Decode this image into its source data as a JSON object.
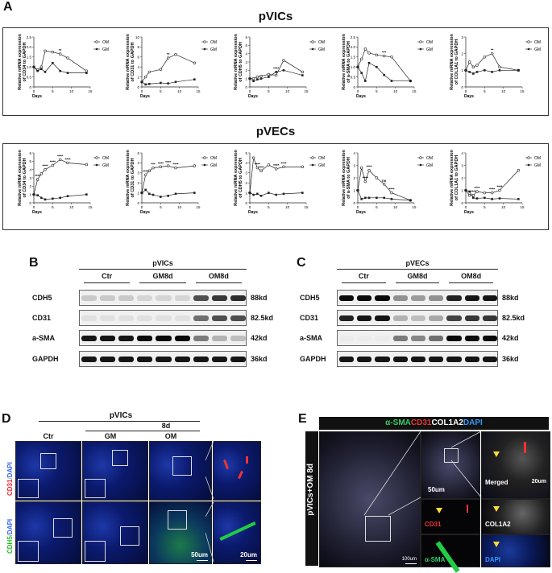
{
  "panels": {
    "A": "A",
    "B": "B",
    "C": "C",
    "D": "D",
    "E": "E"
  },
  "sectionA": {
    "title_top": "pVICs",
    "title_bottom": "pVECs",
    "xlabel": "Days",
    "legend": [
      "OM",
      "GM"
    ],
    "top_ylabels": [
      [
        "Relative mRNA expression",
        "of CD34 to GAPDH"
      ],
      [
        "Relative mRNA expression",
        "of CD31 to GAPDH"
      ],
      [
        "Relative mRNA expression",
        "of CDH5 to GAPDH"
      ],
      [
        "Relative mRNA expression",
        "of a-SMA to GAPDH"
      ],
      [
        "Relative mRNA expression",
        "of COL1A1 to GAPDH"
      ]
    ],
    "bottom_ylabels": [
      [
        "Relative mRNA expression",
        "of CD34 to GAPDH"
      ],
      [
        "Relative mRNA expression",
        "of CD31 to GAPDH"
      ],
      [
        "Relative mRNA expression",
        "of CDH5 to GAPDH"
      ],
      [
        "Relative mRNA expression",
        "of a-SMA to GAPDH"
      ],
      [
        "Relative mRNA expression",
        "of COL1A1 to GAPDH"
      ]
    ]
  },
  "chart_data": [
    {
      "type": "line",
      "x": [
        0,
        1,
        2,
        3,
        5,
        7,
        9,
        14
      ],
      "ylim": [
        0,
        2.5
      ],
      "yticks": [
        "0",
        "0.5",
        "1.0",
        "1.5",
        "2.0",
        "2.5"
      ],
      "xticks": [
        "0",
        "5",
        "10",
        "15"
      ],
      "xlabel": "Days",
      "series": [
        {
          "name": "OM",
          "values": [
            1.0,
            0.85,
            1.0,
            1.8,
            1.75,
            1.65,
            1.45,
            0.8
          ]
        },
        {
          "name": "GM",
          "values": [
            1.0,
            0.8,
            0.9,
            0.75,
            1.2,
            0.8,
            0.7,
            0.7
          ]
        }
      ],
      "annotations": [
        "**"
      ]
    },
    {
      "type": "line",
      "x": [
        0,
        1,
        2,
        5,
        7,
        9,
        14
      ],
      "ylim": [
        0,
        10
      ],
      "yticks": [
        "0",
        "2",
        "4",
        "6",
        "8",
        "10"
      ],
      "xticks": [
        "0",
        "5",
        "10",
        "15"
      ],
      "xlabel": "Days",
      "series": [
        {
          "name": "OM",
          "values": [
            1.0,
            2.0,
            3.0,
            3.5,
            5.8,
            6.5,
            4.8
          ]
        },
        {
          "name": "GM",
          "values": [
            1.0,
            0.5,
            0.6,
            0.8,
            0.7,
            1.0,
            1.5
          ]
        }
      ],
      "annotations": [
        "**"
      ]
    },
    {
      "type": "line",
      "x": [
        0,
        1,
        2,
        3,
        5,
        7,
        9,
        14
      ],
      "ylim": [
        0,
        6
      ],
      "yticks": [
        "0",
        "1",
        "2",
        "3",
        "4",
        "5",
        "6"
      ],
      "xticks": [
        "0",
        "5",
        "10",
        "15"
      ],
      "xlabel": "Days",
      "series": [
        {
          "name": "OM",
          "values": [
            1.0,
            1.0,
            1.2,
            1.3,
            1.5,
            1.4,
            3.2,
            1.8
          ]
        },
        {
          "name": "GM",
          "values": [
            1.0,
            0.7,
            0.9,
            1.0,
            1.2,
            1.8,
            2.0,
            1.4
          ]
        }
      ],
      "annotations": [
        "****"
      ]
    },
    {
      "type": "line",
      "x": [
        0,
        1,
        2,
        3,
        5,
        7,
        9,
        14
      ],
      "ylim": [
        0,
        2.5
      ],
      "yticks": [
        "0",
        "0.5",
        "1.0",
        "1.5",
        "2.0",
        "2.5"
      ],
      "xticks": [
        "0",
        "5",
        "10",
        "15"
      ],
      "xlabel": "Days",
      "series": [
        {
          "name": "OM",
          "values": [
            1.0,
            1.4,
            1.9,
            1.7,
            1.6,
            1.55,
            1.5,
            0.3
          ]
        },
        {
          "name": "GM",
          "values": [
            1.0,
            0.7,
            0.3,
            1.2,
            1.0,
            0.6,
            0.3,
            0.3
          ]
        }
      ],
      "annotations": [
        "***"
      ]
    },
    {
      "type": "line",
      "x": [
        0,
        1,
        2,
        3,
        5,
        7,
        9,
        14
      ],
      "ylim": [
        0,
        3
      ],
      "yticks": [
        "0",
        "1",
        "2",
        "3"
      ],
      "xticks": [
        "0",
        "5",
        "10",
        "15"
      ],
      "xlabel": "Days",
      "series": [
        {
          "name": "OM",
          "values": [
            1.0,
            1.5,
            1.2,
            1.3,
            1.8,
            2.0,
            1.2,
            1.0
          ]
        },
        {
          "name": "GM",
          "values": [
            1.0,
            0.9,
            0.8,
            0.9,
            1.0,
            0.9,
            1.0,
            1.0
          ]
        }
      ],
      "annotations": [
        "**"
      ]
    },
    {
      "type": "line",
      "x": [
        0,
        1,
        2,
        3,
        5,
        7,
        9,
        14
      ],
      "ylim": [
        0,
        6
      ],
      "yticks": [
        "0",
        "1",
        "2",
        "3",
        "4",
        "5",
        "6"
      ],
      "xticks": [
        "0",
        "5",
        "10",
        "15"
      ],
      "xlabel": "Days",
      "series": [
        {
          "name": "OM",
          "values": [
            1.0,
            2.8,
            3.5,
            4.0,
            4.5,
            5.2,
            4.8,
            4.6
          ]
        },
        {
          "name": "GM",
          "values": [
            1.0,
            0.9,
            0.6,
            0.4,
            0.5,
            0.6,
            0.8,
            1.0
          ]
        }
      ],
      "annotations": [
        "****",
        "****",
        "****",
        "****",
        "****"
      ]
    },
    {
      "type": "line",
      "x": [
        0,
        1,
        2,
        3,
        5,
        7,
        9,
        14
      ],
      "ylim": [
        0,
        5
      ],
      "yticks": [
        "0",
        "1",
        "2",
        "3",
        "4",
        "5"
      ],
      "xticks": [
        "0",
        "5",
        "10",
        "15"
      ],
      "xlabel": "Days",
      "series": [
        {
          "name": "OM",
          "values": [
            1.0,
            2.8,
            3.2,
            3.5,
            3.6,
            3.7,
            3.5,
            3.7
          ]
        },
        {
          "name": "GM",
          "values": [
            1.0,
            1.3,
            0.9,
            0.8,
            0.6,
            0.7,
            0.9,
            1.0
          ]
        }
      ],
      "annotations": [
        "****",
        "***",
        "****",
        "****",
        "****"
      ]
    },
    {
      "type": "line",
      "x": [
        0,
        1,
        2,
        3,
        5,
        7,
        9,
        14
      ],
      "ylim": [
        0,
        5
      ],
      "yticks": [
        "0",
        "1",
        "2",
        "3",
        "4",
        "5"
      ],
      "xticks": [
        "0",
        "5",
        "10",
        "15"
      ],
      "xlabel": "Days",
      "series": [
        {
          "name": "OM",
          "values": [
            1.0,
            4.5,
            3.5,
            3.2,
            3.8,
            3.4,
            3.6,
            3.6
          ]
        },
        {
          "name": "GM",
          "values": [
            1.0,
            0.8,
            0.9,
            0.7,
            1.0,
            0.8,
            0.9,
            1.0
          ]
        }
      ],
      "annotations": [
        "****",
        "****",
        "****",
        "****"
      ]
    },
    {
      "type": "line",
      "x": [
        0,
        1,
        2,
        3,
        5,
        7,
        9,
        14
      ],
      "ylim": [
        0,
        4
      ],
      "yticks": [
        "0",
        "1",
        "2",
        "3",
        "4"
      ],
      "xticks": [
        "0",
        "5",
        "10",
        "15"
      ],
      "xlabel": "Days",
      "series": [
        {
          "name": "OM",
          "values": [
            1.0,
            2.8,
            1.7,
            2.6,
            2.0,
            1.5,
            0.8,
            0.2
          ]
        },
        {
          "name": "GM",
          "values": [
            1.0,
            0.3,
            0.4,
            0.4,
            0.4,
            0.4,
            0.3,
            0.2
          ]
        }
      ],
      "annotations": [
        "****",
        "****",
        "ns",
        "****"
      ]
    },
    {
      "type": "line",
      "x": [
        0,
        1,
        2,
        3,
        5,
        7,
        9,
        14
      ],
      "ylim": [
        0,
        4
      ],
      "yticks": [
        "0",
        "1",
        "2",
        "3",
        "4"
      ],
      "xticks": [
        "0",
        "5",
        "10",
        "15"
      ],
      "xlabel": "Days",
      "series": [
        {
          "name": "OM",
          "values": [
            1.0,
            0.6,
            0.6,
            0.9,
            0.8,
            0.8,
            1.0,
            2.6
          ]
        },
        {
          "name": "GM",
          "values": [
            1.0,
            0.9,
            0.4,
            0.35,
            0.4,
            0.3,
            0.35,
            0.3
          ]
        }
      ],
      "annotations": [
        "****",
        "****",
        "****",
        "****"
      ]
    }
  ],
  "panelB": {
    "title": "pVICs",
    "groups": [
      "Ctr",
      "GM8d",
      "OM8d"
    ],
    "rows": [
      {
        "label": "CDH5",
        "kd": "88kd",
        "levels": [
          0.15,
          0.15,
          0.15,
          0.1,
          0.1,
          0.1,
          0.7,
          0.8,
          0.85
        ]
      },
      {
        "label": "CD31",
        "kd": "82.5kd",
        "levels": [
          0.05,
          0.05,
          0.05,
          0.05,
          0.05,
          0.05,
          0.55,
          0.7,
          0.7
        ]
      },
      {
        "label": "a-SMA",
        "kd": "42kd",
        "levels": [
          0.95,
          0.95,
          0.95,
          1.0,
          1.0,
          1.0,
          0.5,
          0.25,
          0.2
        ]
      },
      {
        "label": "GAPDH",
        "kd": "36kd",
        "levels": [
          0.95,
          0.95,
          0.95,
          0.95,
          0.95,
          0.95,
          0.95,
          0.95,
          0.95
        ]
      }
    ]
  },
  "panelC": {
    "title": "pVECs",
    "groups": [
      "Ctr",
      "GM8d",
      "OM8d"
    ],
    "rows": [
      {
        "label": "CDH5",
        "kd": "88kd",
        "levels": [
          1.0,
          1.0,
          1.0,
          0.4,
          0.35,
          0.4,
          0.9,
          0.95,
          0.95
        ]
      },
      {
        "label": "CD31",
        "kd": "82.5kd",
        "levels": [
          0.9,
          0.95,
          0.95,
          0.25,
          0.2,
          0.3,
          0.75,
          0.8,
          0.8
        ]
      },
      {
        "label": "a-SMA",
        "kd": "42kd",
        "levels": [
          0.0,
          0.0,
          0.0,
          0.5,
          0.45,
          0.55,
          1.0,
          1.0,
          1.0
        ]
      },
      {
        "label": "GAPDH",
        "kd": "36kd",
        "levels": [
          0.95,
          0.95,
          0.95,
          0.95,
          0.95,
          0.95,
          0.95,
          0.95,
          0.95
        ]
      }
    ]
  },
  "panelD": {
    "title": "pVICs",
    "sub": "8d",
    "cols": [
      "Ctr",
      "GM",
      "OM"
    ],
    "row1": [
      "CD31",
      "/",
      "DAPI"
    ],
    "row2": [
      "CDH5",
      "/",
      "DAPI"
    ],
    "scale1": "50um",
    "scale2": "20um"
  },
  "panelE": {
    "header": [
      "α-SMA",
      "CD31",
      "COL1A2",
      "DAPI"
    ],
    "side": "pVICs+OM 8d",
    "scale_main": "100um",
    "scale_mid": "50um",
    "scale_merge": "20um",
    "merged": "Merged",
    "ch_cd31": "CD31",
    "ch_col": "COL1A2",
    "ch_sma": "α-SMA",
    "ch_dapi": "DAPI"
  }
}
